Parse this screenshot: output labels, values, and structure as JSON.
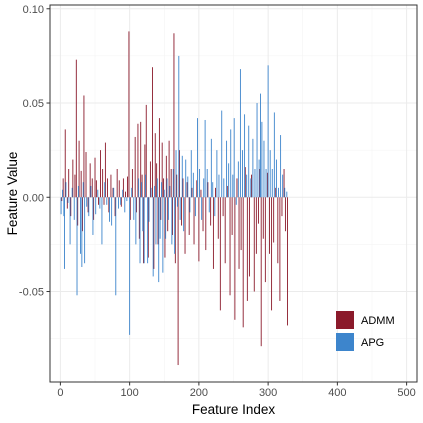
{
  "chart_data": {
    "type": "bar",
    "xlabel": "Feature Index",
    "ylabel": "Feature Value",
    "xlim": [
      -15,
      515
    ],
    "ylim": [
      -0.098,
      0.102
    ],
    "x_ticks": [
      {
        "value": 0,
        "label": "0"
      },
      {
        "value": 100,
        "label": "100"
      },
      {
        "value": 200,
        "label": "200"
      },
      {
        "value": 300,
        "label": "300"
      },
      {
        "value": 400,
        "label": "400"
      },
      {
        "value": 500,
        "label": "500"
      }
    ],
    "y_ticks": [
      {
        "value": -0.05,
        "label": "-0.05"
      },
      {
        "value": 0,
        "label": "0.00"
      },
      {
        "value": 0.05,
        "label": "0.05"
      },
      {
        "value": 0.1,
        "label": "0.10"
      }
    ],
    "grid": true,
    "legend_position": "bottom-right",
    "colors": {
      "ADMM": "#8b1a2b",
      "APG": "#3d85cc"
    },
    "series": [
      {
        "name": "ADMM",
        "color": "#8b1a2b",
        "points": [
          [
            2,
            -0.002
          ],
          [
            4,
            0.01
          ],
          [
            7,
            0.036
          ],
          [
            10,
            -0.006
          ],
          [
            12,
            0.015
          ],
          [
            15,
            -0.01
          ],
          [
            18,
            0.02
          ],
          [
            21,
            0.012
          ],
          [
            23,
            0.073
          ],
          [
            25,
            -0.015
          ],
          [
            27,
            0.03
          ],
          [
            30,
            0.014
          ],
          [
            32,
            -0.018
          ],
          [
            34,
            0.054
          ],
          [
            37,
            0.024
          ],
          [
            40,
            -0.008
          ],
          [
            43,
            0.018
          ],
          [
            46,
            0.01
          ],
          [
            48,
            -0.012
          ],
          [
            50,
            0.021
          ],
          [
            52,
            0.009
          ],
          [
            55,
            -0.004
          ],
          [
            58,
            0.025
          ],
          [
            61,
            0.015
          ],
          [
            63,
            -0.004
          ],
          [
            65,
            0.029
          ],
          [
            68,
            0.01
          ],
          [
            70,
            -0.008
          ],
          [
            73,
            0.012
          ],
          [
            76,
            0.005
          ],
          [
            79,
            -0.01
          ],
          [
            82,
            0.015
          ],
          [
            85,
            0.009
          ],
          [
            88,
            -0.005
          ],
          [
            91,
            0.01
          ],
          [
            94,
            0.003
          ],
          [
            97,
            0.011
          ],
          [
            99,
            0.088
          ],
          [
            101,
            -0.012
          ],
          [
            104,
            0.015
          ],
          [
            108,
            0.032
          ],
          [
            110,
            -0.008
          ],
          [
            112,
            0.039
          ],
          [
            114,
            -0.022
          ],
          [
            116,
            0.04
          ],
          [
            118,
            0.012
          ],
          [
            120,
            -0.035
          ],
          [
            122,
            0.028
          ],
          [
            124,
            0.049
          ],
          [
            127,
            -0.032
          ],
          [
            130,
            0.019
          ],
          [
            133,
            0.069
          ],
          [
            135,
            -0.038
          ],
          [
            137,
            0.034
          ],
          [
            139,
            0.018
          ],
          [
            141,
            -0.025
          ],
          [
            143,
            0.042
          ],
          [
            145,
            -0.012
          ],
          [
            147,
            0.029
          ],
          [
            149,
            0.01
          ],
          [
            151,
            -0.032
          ],
          [
            153,
            0.022
          ],
          [
            155,
            -0.018
          ],
          [
            157,
            0.03
          ],
          [
            160,
            0.015
          ],
          [
            162,
            -0.02
          ],
          [
            164,
            0.087
          ],
          [
            166,
            -0.035
          ],
          [
            168,
            0.012
          ],
          [
            170,
            -0.089
          ],
          [
            172,
            0.025
          ],
          [
            175,
            -0.015
          ],
          [
            177,
            0.01
          ],
          [
            180,
            -0.03
          ],
          [
            183,
            0.008
          ],
          [
            186,
            -0.02
          ],
          [
            190,
            0.005
          ],
          [
            193,
            -0.025
          ],
          [
            197,
            0.009
          ],
          [
            200,
            -0.034
          ],
          [
            203,
            0.004
          ],
          [
            206,
            -0.018
          ],
          [
            210,
            -0.028
          ],
          [
            213,
            0.008
          ],
          [
            217,
            -0.015
          ],
          [
            221,
            -0.038
          ],
          [
            224,
            0.005
          ],
          [
            228,
            -0.022
          ],
          [
            231,
            -0.06
          ],
          [
            235,
            -0.01
          ],
          [
            238,
            -0.035
          ],
          [
            241,
            0.006
          ],
          [
            245,
            -0.052
          ],
          [
            248,
            -0.02
          ],
          [
            252,
            -0.065
          ],
          [
            255,
            0.01
          ],
          [
            258,
            -0.038
          ],
          [
            261,
            -0.028
          ],
          [
            264,
            -0.069
          ],
          [
            267,
            0.016
          ],
          [
            270,
            -0.055
          ],
          [
            273,
            -0.042
          ],
          [
            276,
            0.012
          ],
          [
            280,
            -0.05
          ],
          [
            283,
            -0.03
          ],
          [
            286,
            -0.014
          ],
          [
            288,
            0.015
          ],
          [
            290,
            -0.079
          ],
          [
            293,
            -0.022
          ],
          [
            296,
            -0.045
          ],
          [
            299,
            0.013
          ],
          [
            302,
            -0.03
          ],
          [
            305,
            -0.06
          ],
          [
            308,
            -0.024
          ],
          [
            311,
            0.005
          ],
          [
            314,
            -0.035
          ],
          [
            317,
            -0.055
          ],
          [
            320,
            -0.01
          ],
          [
            323,
            0.015
          ],
          [
            325,
            -0.018
          ],
          [
            328,
            -0.068
          ]
        ]
      },
      {
        "name": "APG",
        "color": "#3d85cc",
        "points": [
          [
            1,
            -0.009
          ],
          [
            3,
            0.004
          ],
          [
            5,
            -0.01
          ],
          [
            6,
            -0.038
          ],
          [
            8,
            0.008
          ],
          [
            11,
            -0.003
          ],
          [
            14,
            -0.025
          ],
          [
            17,
            0.005
          ],
          [
            20,
            -0.012
          ],
          [
            24,
            -0.052
          ],
          [
            26,
            0.006
          ],
          [
            29,
            -0.03
          ],
          [
            31,
            -0.037
          ],
          [
            33,
            0.008
          ],
          [
            35,
            -0.035
          ],
          [
            38,
            -0.005
          ],
          [
            41,
            -0.01
          ],
          [
            44,
            0.006
          ],
          [
            47,
            -0.02
          ],
          [
            51,
            -0.009
          ],
          [
            54,
            0.004
          ],
          [
            57,
            -0.006
          ],
          [
            60,
            -0.025
          ],
          [
            64,
            0.008
          ],
          [
            67,
            -0.004
          ],
          [
            71,
            -0.013
          ],
          [
            74,
            -0.015
          ],
          [
            77,
            0.005
          ],
          [
            80,
            -0.052
          ],
          [
            84,
            -0.006
          ],
          [
            87,
            -0.004
          ],
          [
            90,
            0.004
          ],
          [
            93,
            -0.008
          ],
          [
            96,
            -0.002
          ],
          [
            100,
            -0.073
          ],
          [
            103,
            0.005
          ],
          [
            106,
            -0.012
          ],
          [
            109,
            -0.025
          ],
          [
            113,
            0.01
          ],
          [
            115,
            -0.035
          ],
          [
            117,
            0.008
          ],
          [
            119,
            -0.018
          ],
          [
            121,
            -0.035
          ],
          [
            123,
            0.012
          ],
          [
            126,
            -0.035
          ],
          [
            128,
            -0.013
          ],
          [
            131,
            0.005
          ],
          [
            134,
            -0.042
          ],
          [
            136,
            0.006
          ],
          [
            138,
            -0.025
          ],
          [
            140,
            0.01
          ],
          [
            142,
            -0.045
          ],
          [
            144,
            -0.022
          ],
          [
            146,
            0.008
          ],
          [
            148,
            -0.04
          ],
          [
            150,
            0.004
          ],
          [
            152,
            -0.022
          ],
          [
            154,
            0.01
          ],
          [
            156,
            -0.012
          ],
          [
            158,
            0.006
          ],
          [
            161,
            -0.025
          ],
          [
            163,
            0.015
          ],
          [
            165,
            -0.03
          ],
          [
            167,
            0.025
          ],
          [
            169,
            -0.005
          ],
          [
            171,
            0.075
          ],
          [
            173,
            -0.012
          ],
          [
            176,
            0.022
          ],
          [
            178,
            -0.018
          ],
          [
            181,
            0.02
          ],
          [
            184,
            0.011
          ],
          [
            187,
            -0.008
          ],
          [
            189,
            0.025
          ],
          [
            192,
            0.013
          ],
          [
            195,
            -0.01
          ],
          [
            198,
            0.042
          ],
          [
            201,
            0.015
          ],
          [
            204,
            -0.012
          ],
          [
            207,
            0.01
          ],
          [
            209,
            0.041
          ],
          [
            212,
            0.015
          ],
          [
            215,
            -0.008
          ],
          [
            218,
            0.031
          ],
          [
            220,
            0.008
          ],
          [
            223,
            -0.01
          ],
          [
            226,
            0.025
          ],
          [
            229,
            0.012
          ],
          [
            233,
            0.046
          ],
          [
            236,
            0.01
          ],
          [
            240,
            0.03
          ],
          [
            243,
            0.018
          ],
          [
            246,
            0.036
          ],
          [
            249,
            0.012
          ],
          [
            251,
            0.042
          ],
          [
            254,
            -0.004
          ],
          [
            257,
            0.019
          ],
          [
            260,
            0.068
          ],
          [
            263,
            0.025
          ],
          [
            266,
            0.044
          ],
          [
            269,
            0.012
          ],
          [
            272,
            0.038
          ],
          [
            275,
            0.01
          ],
          [
            278,
            0.031
          ],
          [
            281,
            0.015
          ],
          [
            284,
            0.05
          ],
          [
            287,
            0.02
          ],
          [
            289,
            0.055
          ],
          [
            291,
            0.04
          ],
          [
            294,
            0.03
          ],
          [
            297,
            0.015
          ],
          [
            300,
            0.07
          ],
          [
            303,
            0.025
          ],
          [
            306,
            0.015
          ],
          [
            309,
            0.045
          ],
          [
            312,
            0.02
          ],
          [
            315,
            0.005
          ],
          [
            318,
            0.033
          ],
          [
            321,
            0.012
          ],
          [
            324,
            0.005
          ],
          [
            327,
            0.003
          ]
        ]
      }
    ]
  }
}
